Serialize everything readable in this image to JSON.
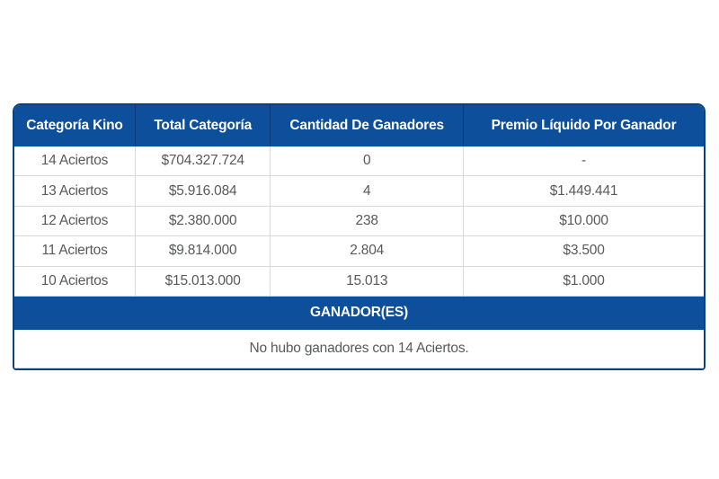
{
  "chart_data": {
    "type": "table",
    "title": "",
    "columns": [
      "Categoría Kino",
      "Total Categoría",
      "Cantidad De Ganadores",
      "Premio Líquido Por Ganador"
    ],
    "rows": [
      [
        "14 Aciertos",
        "$704.327.724",
        "0",
        "-"
      ],
      [
        "13 Aciertos",
        "$5.916.084",
        "4",
        "$1.449.441"
      ],
      [
        "12 Aciertos",
        "$2.380.000",
        "238",
        "$10.000"
      ],
      [
        "11 Aciertos",
        "$9.814.000",
        "2.804",
        "$3.500"
      ],
      [
        "10 Aciertos",
        "$15.013.000",
        "15.013",
        "$1.000"
      ]
    ],
    "footer_band": "GANADOR(ES)",
    "footer_note": "No hubo ganadores con 14 Aciertos."
  },
  "table": {
    "headers": [
      "Categoría Kino",
      "Total Categoría",
      "Cantidad De Ganadores",
      "Premio Líquido Por Ganador"
    ],
    "rows": [
      [
        "14 Aciertos",
        "$704.327.724",
        "0",
        "-"
      ],
      [
        "13 Aciertos",
        "$5.916.084",
        "4",
        "$1.449.441"
      ],
      [
        "12 Aciertos",
        "$2.380.000",
        "238",
        "$10.000"
      ],
      [
        "11 Aciertos",
        "$9.814.000",
        "2.804",
        "$3.500"
      ],
      [
        "10 Aciertos",
        "$15.013.000",
        "15.013",
        "$1.000"
      ]
    ],
    "winners_band": "GANADOR(ES)",
    "winners_note": "No hubo ganadores con 14 Aciertos."
  },
  "colors": {
    "primary_blue": "#0E4F9C",
    "border_blue": "#0B4183",
    "text_gray": "#58595B",
    "divider_gray": "#D8D8D8",
    "header_text": "#FFFFFF"
  }
}
